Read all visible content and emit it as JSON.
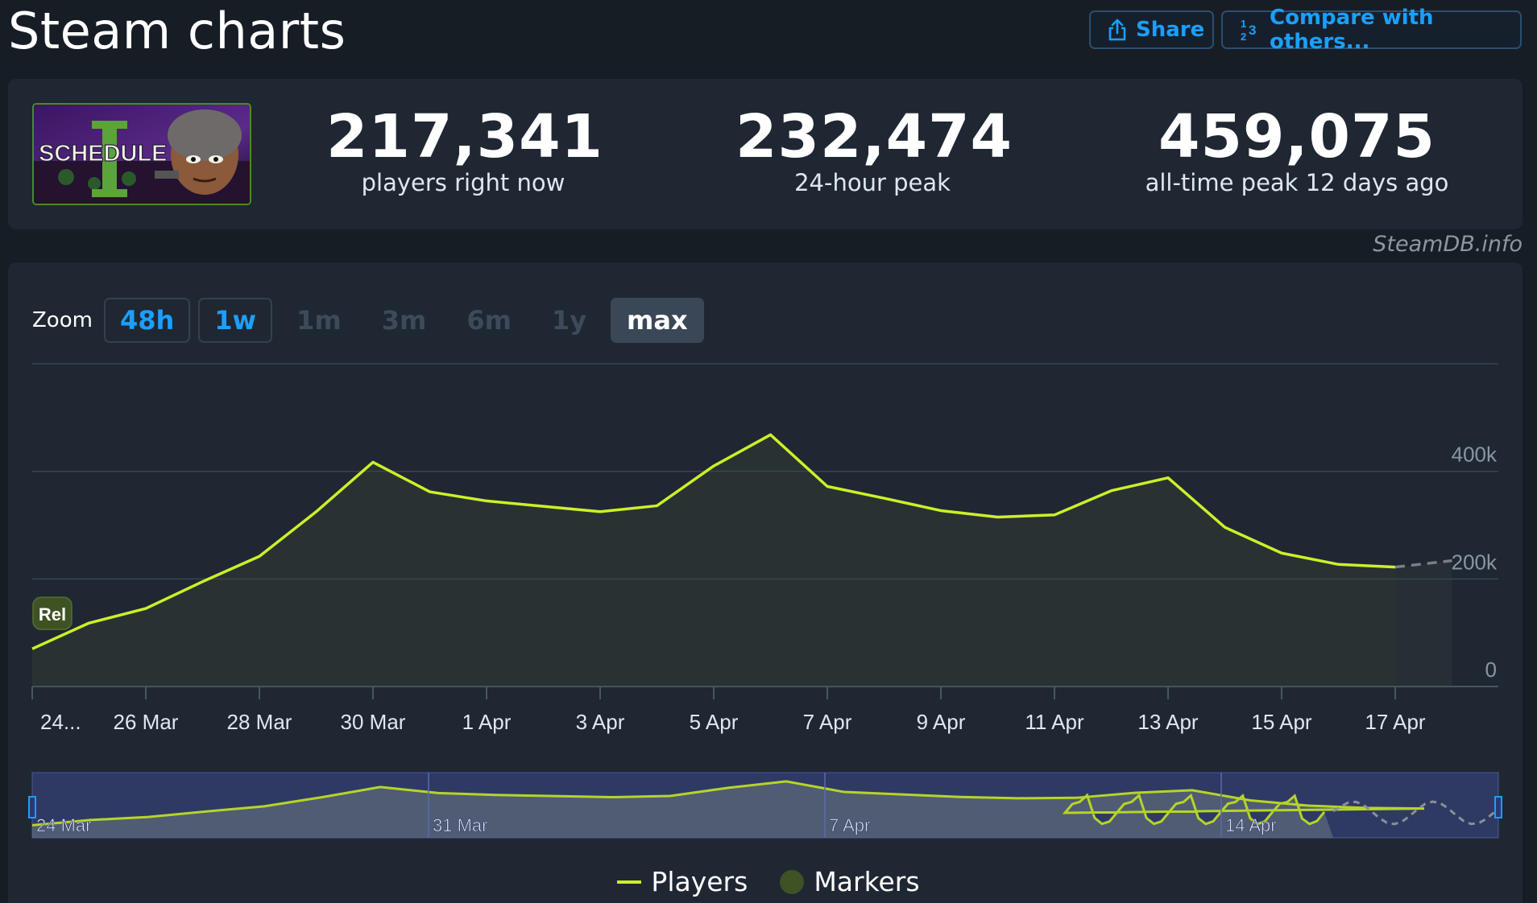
{
  "page": {
    "title": "Steam charts"
  },
  "actions": {
    "share_label": "Share",
    "share_icon": "share-icon",
    "compare_label": "Compare with others...",
    "compare_icon": "compare-numbers-icon"
  },
  "game": {
    "image_text": "SCHEDULE I"
  },
  "stats": [
    {
      "value": "217,341",
      "label": "players right now"
    },
    {
      "value": "232,474",
      "label": "24-hour peak"
    },
    {
      "value": "459,075",
      "label": "all-time peak 12 days ago"
    }
  ],
  "attribution": "SteamDB.info",
  "zoom": {
    "label": "Zoom",
    "options": [
      {
        "label": "48h",
        "state": "enabled"
      },
      {
        "label": "1w",
        "state": "enabled"
      },
      {
        "label": "1m",
        "state": "disabled"
      },
      {
        "label": "3m",
        "state": "disabled"
      },
      {
        "label": "6m",
        "state": "disabled"
      },
      {
        "label": "1y",
        "state": "disabled"
      },
      {
        "label": "max",
        "state": "selected"
      }
    ]
  },
  "marker_label": "Rel",
  "legend": {
    "players": "Players",
    "markers": "Markers"
  },
  "colors": {
    "line": "#ccf028",
    "accent": "#1a9fff",
    "background": "#171d25",
    "card": "#1f2733",
    "navigator": "#3a4a8c"
  },
  "chart_data": [
    {
      "type": "line",
      "series": [
        {
          "name": "Players",
          "x": [
            "2025-03-24",
            "2025-03-25",
            "2025-03-26",
            "2025-03-27",
            "2025-03-28",
            "2025-03-29",
            "2025-03-30",
            "2025-03-31",
            "2025-04-01",
            "2025-04-02",
            "2025-04-03",
            "2025-04-04",
            "2025-04-05",
            "2025-04-06",
            "2025-04-07",
            "2025-04-08",
            "2025-04-09",
            "2025-04-10",
            "2025-04-11",
            "2025-04-12",
            "2025-04-13",
            "2025-04-14",
            "2025-04-15",
            "2025-04-16",
            "2025-04-17"
          ],
          "values": [
            70000,
            118000,
            145000,
            195000,
            242000,
            325000,
            417000,
            362000,
            345000,
            335000,
            325000,
            336000,
            410000,
            468000,
            372000,
            350000,
            327000,
            315000,
            319000,
            364000,
            388000,
            296000,
            248000,
            227000,
            222000
          ]
        },
        {
          "name": "Players (projected)",
          "dashed": true,
          "x": [
            "2025-04-17",
            "2025-04-18"
          ],
          "values": [
            222000,
            234000
          ]
        }
      ],
      "x_tick_labels": [
        "24...",
        "26 Mar",
        "28 Mar",
        "30 Mar",
        "1 Apr",
        "3 Apr",
        "5 Apr",
        "7 Apr",
        "9 Apr",
        "11 Apr",
        "13 Apr",
        "15 Apr",
        "17 Apr"
      ],
      "y_tick_labels": [
        "0",
        "200k",
        "400k"
      ],
      "ylim": [
        0,
        600000
      ],
      "grid": true,
      "markers": [
        {
          "x": "2025-03-24",
          "label": "Rel"
        }
      ]
    },
    {
      "type": "area",
      "role": "navigator",
      "x_tick_labels": [
        "24 Mar",
        "31 Mar",
        "7 Apr",
        "14 Apr"
      ]
    }
  ]
}
